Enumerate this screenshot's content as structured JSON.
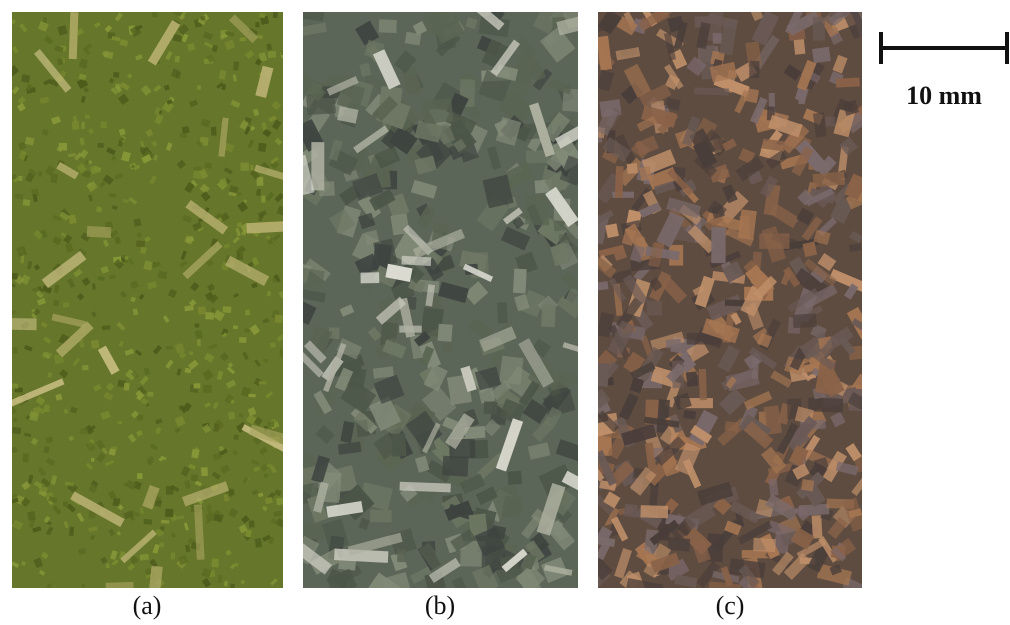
{
  "panels": [
    {
      "label": "(a)"
    },
    {
      "label": "(b)"
    },
    {
      "label": "(c)"
    }
  ],
  "scale_bar": {
    "label": "10 mm"
  }
}
